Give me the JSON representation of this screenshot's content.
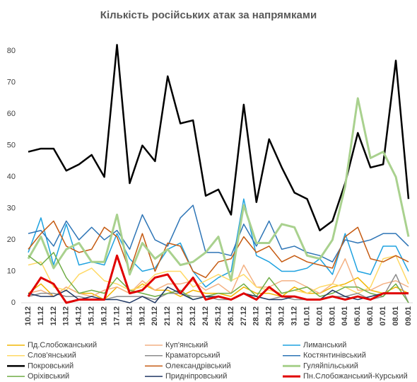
{
  "chart_data": {
    "type": "line",
    "title": "Кількість російських атак за напрямками",
    "categories": [
      "10.12",
      "11.12",
      "12.12",
      "13.12",
      "14.12",
      "15.12",
      "16.12",
      "17.12",
      "18.12",
      "19.12",
      "20.12",
      "21.12",
      "22.12",
      "23.12",
      "24.12",
      "25.12",
      "26.12",
      "27.12",
      "28.12",
      "29.12",
      "30.12",
      "31.12",
      "01.01",
      "02.01",
      "03.01",
      "04.01",
      "05.01",
      "06.01",
      "07.01",
      "08.01",
      "09.01"
    ],
    "ylim": [
      0,
      85
    ],
    "yticks": [
      0,
      10,
      20,
      30,
      40,
      50,
      60,
      70,
      80
    ],
    "grid": false,
    "legend": "bottom",
    "series": [
      {
        "name": "Пд.Слобожанський",
        "color": "#f2b705",
        "width": 1.5,
        "values": [
          3,
          6,
          2,
          5,
          3,
          3,
          1,
          5,
          3,
          6,
          4,
          4,
          2,
          4,
          3,
          3,
          2,
          5,
          3,
          3,
          2,
          5,
          3,
          3,
          5,
          6,
          8,
          4,
          3,
          5,
          3
        ]
      },
      {
        "name": "Куп'янський",
        "color": "#f4b183",
        "width": 1.5,
        "values": [
          3,
          4,
          2,
          5,
          3,
          2,
          4,
          5,
          3,
          7,
          4,
          6,
          6,
          7,
          4,
          6,
          3,
          12,
          5,
          5,
          7,
          7,
          5,
          3,
          6,
          14,
          4,
          4,
          6,
          7,
          5
        ]
      },
      {
        "name": "Лиманський",
        "color": "#1fa2e0",
        "width": 1.5,
        "values": [
          16,
          27,
          12,
          25,
          12,
          13,
          12,
          22,
          14,
          10,
          11,
          17,
          19,
          10,
          5,
          8,
          10,
          33,
          15,
          13,
          10,
          10,
          11,
          14,
          9,
          22,
          10,
          9,
          18,
          18,
          10
        ]
      },
      {
        "name": "Слов'янський",
        "color": "#ffd966",
        "width": 1.5,
        "values": [
          12,
          13,
          5,
          4,
          9,
          11,
          7,
          6,
          4,
          5,
          9,
          10,
          10,
          5,
          7,
          9,
          7,
          9,
          5,
          4,
          3,
          4,
          3,
          5,
          6,
          5,
          3,
          5,
          14,
          15,
          6
        ]
      },
      {
        "name": "Краматорський",
        "color": "#8c8c8c",
        "width": 1.5,
        "values": [
          2,
          3,
          3,
          2,
          2,
          1,
          1,
          2,
          2,
          2,
          1,
          3,
          3,
          2,
          2,
          1,
          1,
          3,
          2,
          1,
          2,
          1,
          1,
          1,
          2,
          2,
          3,
          1,
          2,
          9,
          0
        ]
      },
      {
        "name": "Костянтинівський",
        "color": "#2e75b6",
        "width": 1.5,
        "values": [
          22,
          23,
          18,
          26,
          20,
          24,
          20,
          23,
          17,
          28,
          20,
          18,
          27,
          31,
          16,
          16,
          15,
          25,
          18,
          26,
          17,
          18,
          16,
          15,
          13,
          20,
          19,
          20,
          22,
          22,
          18
        ]
      },
      {
        "name": "Покровський",
        "color": "#000000",
        "width": 2.5,
        "values": [
          48,
          49,
          49,
          42,
          44,
          47,
          40,
          82,
          38,
          50,
          45,
          72,
          57,
          58,
          34,
          36,
          28,
          63,
          32,
          52,
          43,
          35,
          33,
          23,
          26,
          38,
          54,
          43,
          44,
          77,
          33
        ]
      },
      {
        "name": "Олександрівський",
        "color": "#c55a11",
        "width": 1.5,
        "values": [
          17,
          22,
          26,
          18,
          16,
          17,
          24,
          21,
          10,
          22,
          10,
          19,
          18,
          10,
          8,
          13,
          14,
          21,
          16,
          18,
          13,
          15,
          13,
          12,
          11,
          21,
          24,
          14,
          13,
          15,
          13
        ]
      },
      {
        "name": "Гуляйпільський",
        "color": "#a9d18e",
        "width": 3,
        "values": [
          14,
          21,
          11,
          17,
          19,
          13,
          13,
          28,
          9,
          19,
          14,
          17,
          12,
          13,
          16,
          21,
          7,
          31,
          19,
          19,
          25,
          24,
          15,
          14,
          20,
          37,
          65,
          46,
          48,
          40,
          21
        ]
      },
      {
        "name": "Оріхівський",
        "color": "#70ad47",
        "width": 1.5,
        "values": [
          15,
          12,
          16,
          8,
          3,
          4,
          3,
          8,
          4,
          3,
          2,
          3,
          4,
          1,
          2,
          3,
          3,
          6,
          2,
          8,
          3,
          4,
          5,
          2,
          3,
          5,
          5,
          3,
          2,
          6,
          0
        ]
      },
      {
        "name": "Придніпровський",
        "color": "#203864",
        "width": 1.5,
        "values": [
          3,
          2,
          2,
          4,
          1,
          2,
          1,
          1,
          0,
          2,
          0,
          5,
          3,
          1,
          2,
          2,
          1,
          3,
          2,
          1,
          1,
          2,
          1,
          1,
          4,
          2,
          1,
          2,
          3,
          3,
          3
        ]
      },
      {
        "name": "Пн.Слобожанський-Курський",
        "color": "#e00000",
        "width": 3,
        "values": [
          2,
          8,
          6,
          0,
          1,
          1,
          1,
          15,
          3,
          4,
          8,
          9,
          3,
          8,
          1,
          2,
          1,
          3,
          1,
          5,
          2,
          2,
          1,
          1,
          2,
          1,
          2,
          1,
          3,
          3,
          3
        ]
      }
    ]
  }
}
